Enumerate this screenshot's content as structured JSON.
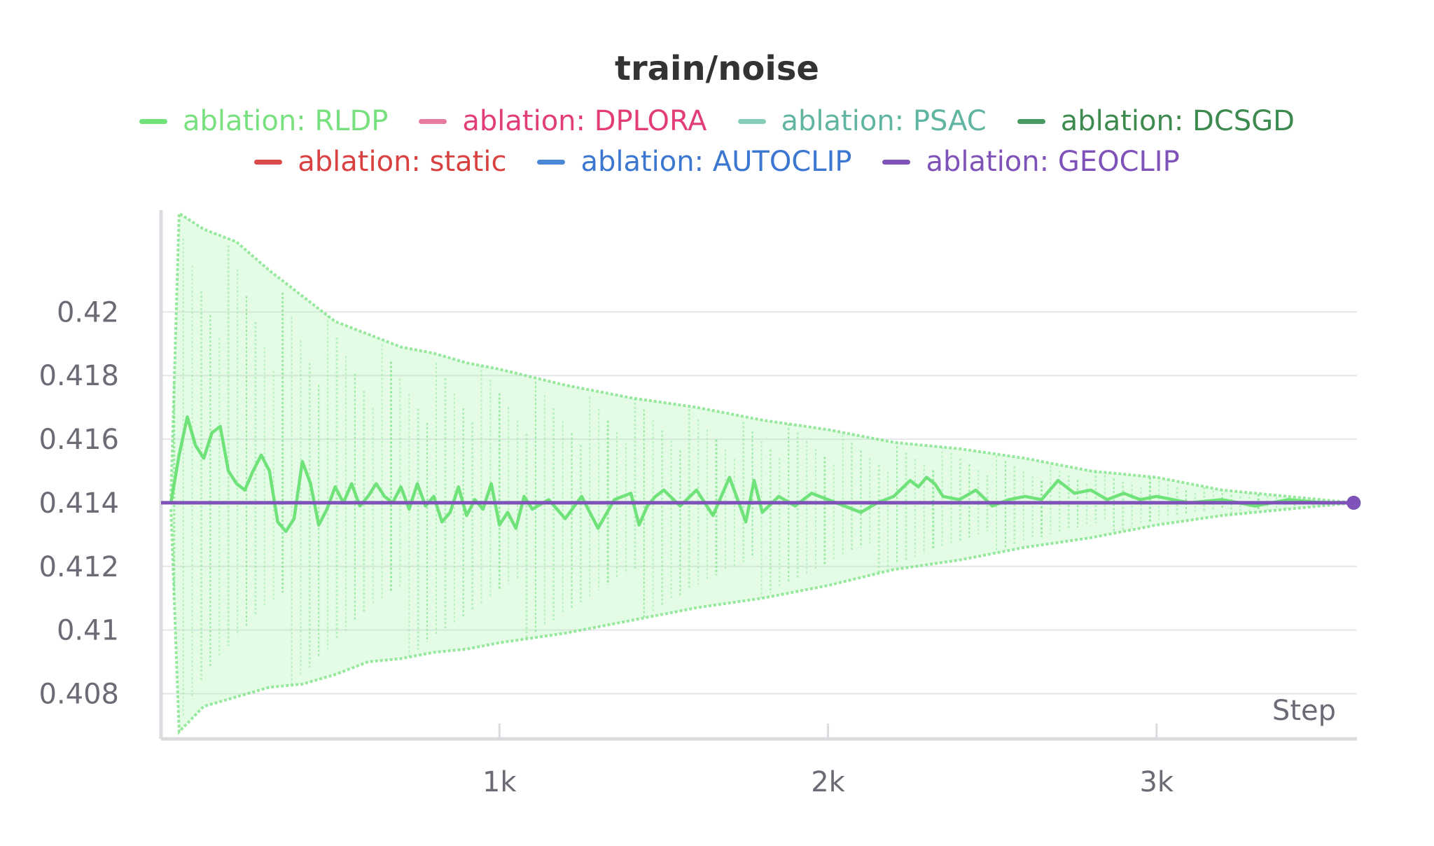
{
  "chart_data": {
    "type": "line",
    "title": "train/noise",
    "xlabel": "Step",
    "ylabel": "",
    "xlim": [
      -30,
      3610
    ],
    "ylim": [
      0.4068,
      0.4232
    ],
    "x_ticks": [
      {
        "value": 1000,
        "label": "1k"
      },
      {
        "value": 2000,
        "label": "2k"
      },
      {
        "value": 3000,
        "label": "3k"
      }
    ],
    "y_ticks": [
      {
        "value": 0.408,
        "label": "0.408"
      },
      {
        "value": 0.41,
        "label": "0.41"
      },
      {
        "value": 0.412,
        "label": "0.412"
      },
      {
        "value": 0.414,
        "label": "0.414"
      },
      {
        "value": 0.416,
        "label": "0.416"
      },
      {
        "value": 0.418,
        "label": "0.418"
      },
      {
        "value": 0.42,
        "label": "0.42"
      }
    ],
    "grid": true,
    "legend_position": "top-center",
    "series": [
      {
        "name": "ablation: RLDP",
        "color": "#6fe27a",
        "x": [
          0,
          25,
          50,
          75,
          100,
          125,
          150,
          175,
          200,
          225,
          250,
          275,
          300,
          325,
          350,
          375,
          400,
          425,
          450,
          475,
          500,
          525,
          550,
          575,
          600,
          625,
          650,
          675,
          700,
          725,
          750,
          775,
          800,
          825,
          850,
          875,
          900,
          925,
          950,
          975,
          1000,
          1025,
          1050,
          1075,
          1100,
          1150,
          1200,
          1250,
          1300,
          1350,
          1400,
          1425,
          1450,
          1475,
          1500,
          1550,
          1600,
          1650,
          1700,
          1725,
          1750,
          1775,
          1800,
          1850,
          1900,
          1950,
          2000,
          2050,
          2100,
          2150,
          2200,
          2250,
          2275,
          2300,
          2325,
          2350,
          2400,
          2450,
          2500,
          2550,
          2600,
          2650,
          2700,
          2750,
          2800,
          2850,
          2900,
          2950,
          3000,
          3100,
          3200,
          3300,
          3400,
          3500,
          3600
        ],
        "y": [
          0.414,
          0.4155,
          0.4167,
          0.4158,
          0.4154,
          0.4162,
          0.4164,
          0.415,
          0.4146,
          0.4144,
          0.415,
          0.4155,
          0.415,
          0.4134,
          0.4131,
          0.4135,
          0.4153,
          0.4146,
          0.4133,
          0.4138,
          0.4145,
          0.414,
          0.4146,
          0.4139,
          0.4142,
          0.4146,
          0.4142,
          0.414,
          0.4145,
          0.4138,
          0.4146,
          0.4139,
          0.4142,
          0.4134,
          0.4137,
          0.4145,
          0.4136,
          0.4141,
          0.4138,
          0.4146,
          0.4133,
          0.4137,
          0.4132,
          0.4142,
          0.4138,
          0.4141,
          0.4135,
          0.4142,
          0.4132,
          0.4141,
          0.4143,
          0.4133,
          0.4139,
          0.4142,
          0.4144,
          0.4139,
          0.4144,
          0.4136,
          0.4148,
          0.4141,
          0.4134,
          0.4147,
          0.4137,
          0.4142,
          0.4139,
          0.4143,
          0.4141,
          0.4139,
          0.4137,
          0.414,
          0.4142,
          0.4147,
          0.4145,
          0.4148,
          0.4146,
          0.4142,
          0.4141,
          0.4144,
          0.4139,
          0.4141,
          0.4142,
          0.4141,
          0.4147,
          0.4143,
          0.4144,
          0.4141,
          0.4143,
          0.4141,
          0.4142,
          0.414,
          0.4141,
          0.4139,
          0.4141,
          0.414,
          0.414
        ],
        "envelope": {
          "x": [
            0,
            25,
            100,
            200,
            300,
            400,
            500,
            600,
            700,
            800,
            900,
            1000,
            1200,
            1400,
            1600,
            1800,
            2000,
            2200,
            2400,
            2600,
            2800,
            3000,
            3200,
            3400,
            3600
          ],
          "upper": [
            0.4142,
            0.4231,
            0.4226,
            0.4222,
            0.4213,
            0.4205,
            0.4197,
            0.4193,
            0.4189,
            0.4187,
            0.4184,
            0.4182,
            0.4177,
            0.4173,
            0.417,
            0.4166,
            0.4163,
            0.4159,
            0.4157,
            0.4154,
            0.415,
            0.4148,
            0.4144,
            0.4142,
            0.414
          ],
          "lower": [
            0.4138,
            0.4068,
            0.4076,
            0.4079,
            0.4082,
            0.4083,
            0.4086,
            0.409,
            0.4091,
            0.4093,
            0.4094,
            0.4096,
            0.4099,
            0.4103,
            0.4107,
            0.411,
            0.4114,
            0.4119,
            0.4122,
            0.4126,
            0.4129,
            0.4133,
            0.4136,
            0.4138,
            0.414
          ]
        }
      },
      {
        "name": "ablation: DPLORA",
        "color": "#e87a9f"
      },
      {
        "name": "ablation: PSAC",
        "color": "#87cdb9"
      },
      {
        "name": "ablation: DCSGD",
        "color": "#479a5f"
      },
      {
        "name": "ablation: static",
        "color": "#d94a4a"
      },
      {
        "name": "ablation: AUTOCLIP",
        "color": "#4c88d8"
      },
      {
        "name": "ablation: GEOCLIP",
        "color": "#7e52b8",
        "x": [
          -30,
          3600
        ],
        "y": [
          0.414,
          0.414
        ]
      }
    ]
  },
  "legend_text_colors": [
    "#78e07f",
    "#e23d78",
    "#5fb5a0",
    "#3d8a4f",
    "#d94141",
    "#3b77d0",
    "#7e52b8"
  ]
}
